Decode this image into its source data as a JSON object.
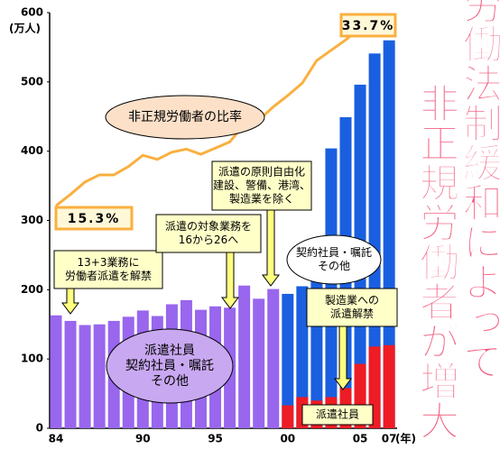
{
  "chart_data": {
    "type": "bar",
    "categories": [
      "84",
      null,
      null,
      null,
      null,
      null,
      "90",
      null,
      null,
      null,
      null,
      "95",
      null,
      null,
      null,
      null,
      "00",
      null,
      null,
      null,
      null,
      "05",
      null,
      "07"
    ],
    "x_unit": "(年)",
    "y_unit": "(万人)",
    "ylim": [
      0,
      600
    ],
    "yticks": [
      0,
      100,
      200,
      300,
      400,
      500,
      600
    ],
    "y2lim": [
      -6.3,
      34.05
    ],
    "series": [
      {
        "color": "#9966ee",
        "values": [
          163,
          155,
          149,
          150,
          155,
          161,
          170,
          162,
          179,
          185,
          171,
          176,
          174,
          206,
          187,
          201,
          null,
          null,
          null,
          null,
          null,
          null,
          null,
          null
        ]
      },
      {
        "color": "#1a5fe0",
        "values": [
          null,
          null,
          null,
          null,
          null,
          null,
          null,
          null,
          null,
          null,
          null,
          null,
          null,
          null,
          null,
          null,
          194,
          205,
          240,
          404,
          449,
          496,
          541,
          560
        ]
      },
      {
        "color": "#ee1c24",
        "values": [
          null,
          null,
          null,
          null,
          null,
          null,
          null,
          null,
          null,
          null,
          null,
          null,
          null,
          null,
          null,
          null,
          33,
          45,
          40,
          45,
          58,
          93,
          118,
          120
        ]
      },
      {
        "type": "line",
        "axis": "y2",
        "color": "#f9b040",
        "values": [
          15.3,
          16.4,
          17.6,
          18.3,
          18.3,
          19.1,
          20.2,
          19.8,
          20.5,
          20.8,
          20.3,
          20.9,
          21.5,
          23.2,
          23.6,
          24.9,
          26.0,
          27.2,
          29.4,
          30.4,
          31.4,
          32.6,
          33.0,
          33.7
        ],
        "value_labels": [
          "15.3%",
          null,
          null,
          null,
          null,
          null,
          null,
          null,
          null,
          null,
          null,
          null,
          null,
          null,
          null,
          null,
          null,
          null,
          null,
          null,
          null,
          null,
          null,
          "33.7%"
        ]
      }
    ],
    "annotations": [
      {
        "lines": [
          "非正規労働者の比率"
        ]
      },
      {
        "lines": [
          "13+3業務に",
          "労働者派遣を解禁"
        ]
      },
      {
        "lines": [
          "派遣の対象業務を",
          "16から26へ"
        ]
      },
      {
        "lines": [
          "派遣の原則自由化",
          "建設、警備、港湾、",
          "製造業を除く"
        ]
      },
      {
        "lines": [
          "契約社員・嘱託",
          "その他"
        ]
      },
      {
        "lines": [
          "製造業への",
          "派遣解禁"
        ]
      },
      {
        "lines": [
          "派遣社員",
          "契約社員・嘱託",
          "その他"
        ]
      },
      {
        "lines": [
          "派遣社員"
        ]
      }
    ],
    "headline": [
      "労働法制緩和によって",
      "非正規労働者が増大"
    ]
  }
}
